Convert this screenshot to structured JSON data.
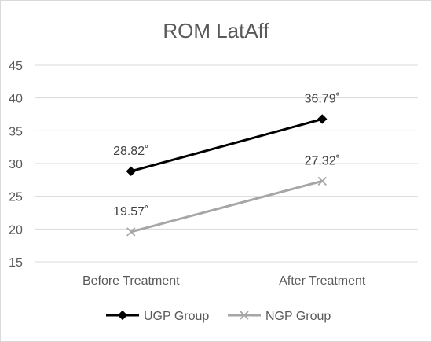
{
  "chart_data": {
    "type": "line",
    "title": "ROM LatAff",
    "categories": [
      "Before Treatment",
      "After Treatment"
    ],
    "ylim": [
      15,
      45
    ],
    "yticks": [
      15,
      20,
      25,
      30,
      35,
      40,
      45
    ],
    "grid": true,
    "legend_position": "bottom",
    "series": [
      {
        "name": "UGP Group",
        "values": [
          28.82,
          36.79
        ],
        "labels": [
          "28.82˚",
          "36.79˚"
        ],
        "color": "#000000",
        "marker": "diamond"
      },
      {
        "name": "NGP Group",
        "values": [
          19.57,
          27.32
        ],
        "labels": [
          "19.57˚",
          "27.32˚"
        ],
        "color": "#a6a6a6",
        "marker": "x"
      }
    ]
  }
}
